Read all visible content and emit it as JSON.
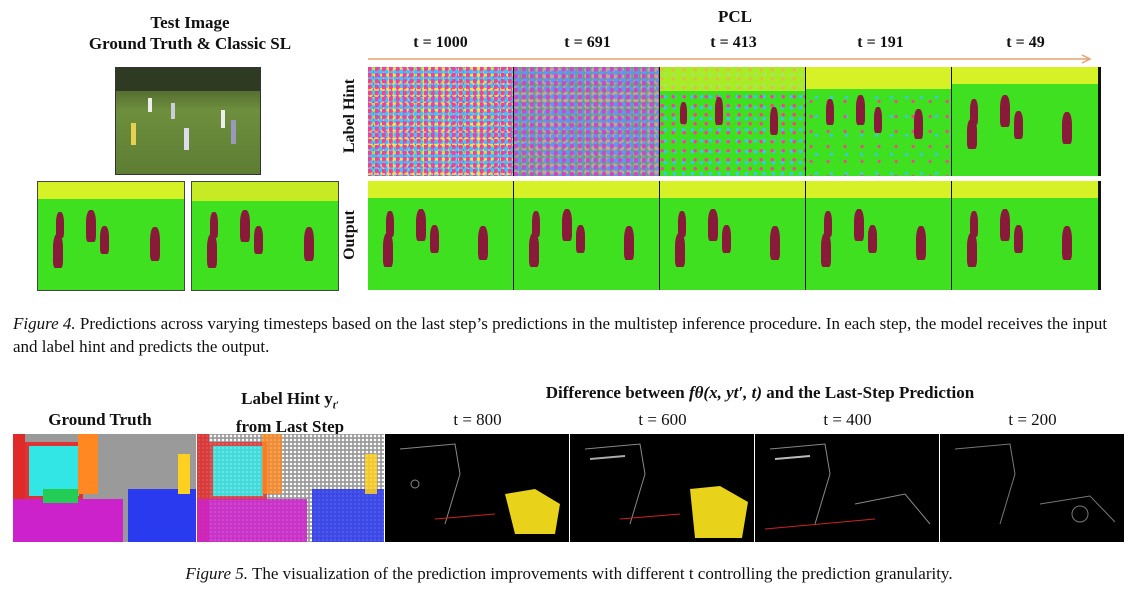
{
  "figure4": {
    "left_header_line1": "Test Image",
    "left_header_line2": "Ground Truth & Classic SL",
    "pcl_header": "PCL",
    "timesteps": [
      "t = 1000",
      "t = 691",
      "t = 413",
      "t = 191",
      "t = 49"
    ],
    "row_labels": [
      "Label Hint",
      "Output"
    ],
    "caption_label": "Figure 4.",
    "caption_text": " Predictions across varying timesteps based on the last step’s predictions in the multistep inference procedure. In each step, the model receives the input and label hint and predicts the output."
  },
  "figure5": {
    "ground_truth_label": "Ground Truth",
    "label_hint_line1": "Label Hint y",
    "label_hint_sub": "t′",
    "label_hint_line2": "from Last Step",
    "difference_prefix": "Difference between ",
    "difference_formula": "fθ(x, yt′, t)",
    "difference_suffix": " and the Last-Step Prediction",
    "timesteps": [
      "t = 800",
      "t = 600",
      "t = 400",
      "t = 200"
    ],
    "caption_label": "Figure 5.",
    "caption_text": " The visualization of the prediction improvements with different t controlling the prediction granularity."
  },
  "colors": {
    "grass": "#3ee01f",
    "sky": "#d6f226",
    "person": "#8a1a3a",
    "arrow": "#e8a070"
  }
}
